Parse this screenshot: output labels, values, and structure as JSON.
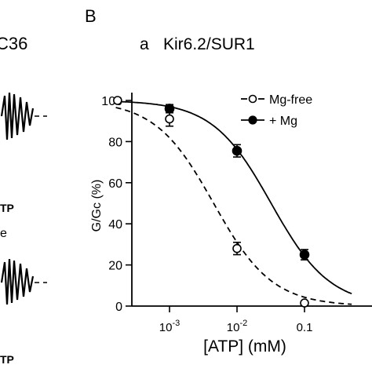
{
  "panel_letter": "B",
  "left_panel": {
    "top_label": "C36",
    "label_atp_1": "TP",
    "label_e": "e",
    "label_atp_2": "TP"
  },
  "chart_data": {
    "type": "scatter",
    "subtitle_prefix": "a",
    "title": "Kir6.2/SUR1",
    "xlabel": "[ATP] (mM)",
    "ylabel": "G/Gc (%)",
    "xscale": "log",
    "xlim": [
      0.00016,
      0.5
    ],
    "ylim": [
      0,
      105
    ],
    "x_ticks": [
      {
        "value": 0.001,
        "base": "10",
        "exp": "-3"
      },
      {
        "value": 0.01,
        "base": "10",
        "exp": "-2"
      },
      {
        "value": 0.1,
        "base": "0.1",
        "exp": ""
      }
    ],
    "y_ticks": [
      0,
      20,
      40,
      60,
      80,
      100
    ],
    "legend_position": "top-right",
    "series": [
      {
        "name": "Mg-free",
        "legend_label": "-○-Mg-free",
        "marker": "open-circle",
        "line": "dashed",
        "points": [
          {
            "x": 0.00017,
            "y": 100,
            "err": 0
          },
          {
            "x": 0.001,
            "y": 91,
            "err": 3.5
          },
          {
            "x": 0.01,
            "y": 28,
            "err": 3
          },
          {
            "x": 0.1,
            "y": 1.5,
            "err": 0
          }
        ],
        "fit": {
          "ic50": 0.0045,
          "hill": 1.0
        }
      },
      {
        "name": "+ Mg",
        "legend_label": "+ Mg",
        "marker": "filled-circle",
        "line": "solid",
        "points": [
          {
            "x": 0.001,
            "y": 96,
            "err": 2
          },
          {
            "x": 0.01,
            "y": 75.5,
            "err": 3
          },
          {
            "x": 0.1,
            "y": 25,
            "err": 2.5
          }
        ],
        "fit": {
          "ic50": 0.032,
          "hill": 1.0
        }
      }
    ]
  }
}
